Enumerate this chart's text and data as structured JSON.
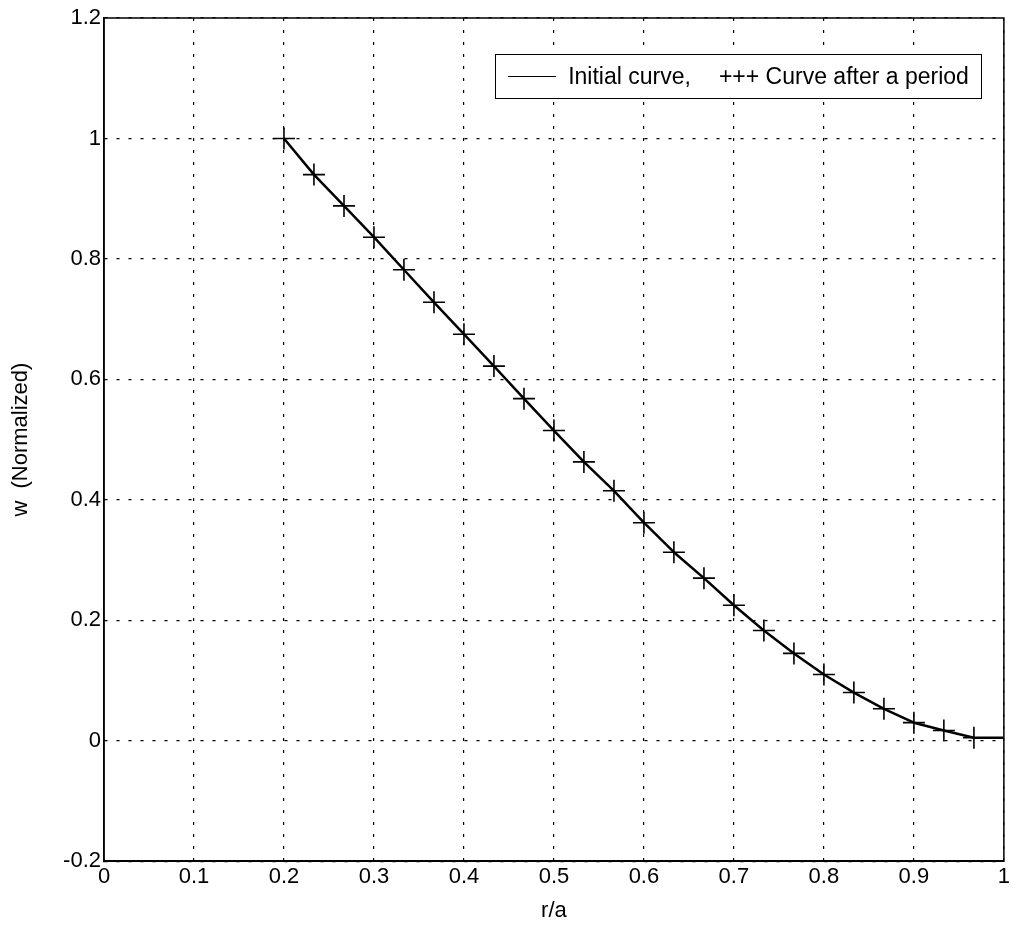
{
  "chart_data": {
    "type": "line",
    "xlabel": "r/a",
    "ylabel": "w  (Normalized)",
    "xlim": [
      0,
      1
    ],
    "xticks": [
      0,
      0.1,
      0.2,
      0.3,
      0.4,
      0.5,
      0.6,
      0.7,
      0.8,
      0.9,
      1
    ],
    "ylim": [
      -0.2,
      1.2
    ],
    "yticks": [
      -0.2,
      0,
      0.2,
      0.4,
      0.6,
      0.8,
      1,
      1.2
    ],
    "grid": true,
    "legend": "top right",
    "series": [
      {
        "name": "Initial curve,",
        "marker": "none",
        "color": "#000000",
        "x": [
          0.2,
          0.2333,
          0.2667,
          0.3,
          0.3333,
          0.3667,
          0.4,
          0.4333,
          0.4667,
          0.5,
          0.5333,
          0.5667,
          0.6,
          0.6333,
          0.6667,
          0.7,
          0.7333,
          0.7667,
          0.8,
          0.8333,
          0.8667,
          0.9,
          0.9333,
          0.9667,
          1
        ],
        "values": [
          1,
          0.94,
          0.888,
          0.836,
          0.782,
          0.728,
          0.675,
          0.622,
          0.568,
          0.515,
          0.463,
          0.415,
          0.362,
          0.313,
          0.27,
          0.225,
          0.183,
          0.145,
          0.11,
          0.08,
          0.053,
          0.03,
          0.017,
          0.005,
          0.005
        ]
      },
      {
        "name": "+++ Curve after a period",
        "type": "scatter",
        "marker": "cross",
        "color": "#000000",
        "x": [
          0.2,
          0.2333,
          0.2667,
          0.3,
          0.3333,
          0.3667,
          0.4,
          0.4333,
          0.4667,
          0.5,
          0.5333,
          0.5667,
          0.6,
          0.6333,
          0.6667,
          0.7,
          0.7333,
          0.7667,
          0.8,
          0.8333,
          0.8667,
          0.9,
          0.9333,
          0.9667
        ],
        "values": [
          1,
          0.94,
          0.888,
          0.836,
          0.782,
          0.728,
          0.675,
          0.622,
          0.568,
          0.515,
          0.463,
          0.415,
          0.362,
          0.313,
          0.27,
          0.225,
          0.183,
          0.145,
          0.11,
          0.08,
          0.053,
          0.03,
          0.017,
          0.005
        ]
      }
    ]
  }
}
